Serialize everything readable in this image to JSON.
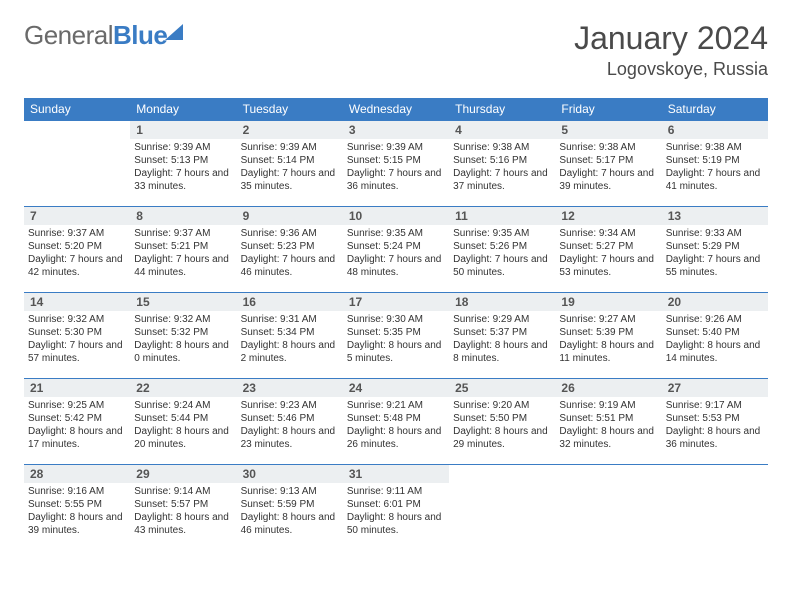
{
  "logo": {
    "part1": "General",
    "part2": "Blue"
  },
  "title": "January 2024",
  "location": "Logovskoye, Russia",
  "colors": {
    "accent": "#3a7cc4",
    "header_bg": "#eceff1",
    "text": "#333333",
    "logo_gray": "#6a6a6a",
    "background": "#ffffff"
  },
  "day_names": [
    "Sunday",
    "Monday",
    "Tuesday",
    "Wednesday",
    "Thursday",
    "Friday",
    "Saturday"
  ],
  "calendar": {
    "type": "table",
    "first_weekday": 1,
    "days_in_month": 31
  },
  "days": {
    "1": {
      "sunrise": "9:39 AM",
      "sunset": "5:13 PM",
      "daylight": "7 hours and 33 minutes."
    },
    "2": {
      "sunrise": "9:39 AM",
      "sunset": "5:14 PM",
      "daylight": "7 hours and 35 minutes."
    },
    "3": {
      "sunrise": "9:39 AM",
      "sunset": "5:15 PM",
      "daylight": "7 hours and 36 minutes."
    },
    "4": {
      "sunrise": "9:38 AM",
      "sunset": "5:16 PM",
      "daylight": "7 hours and 37 minutes."
    },
    "5": {
      "sunrise": "9:38 AM",
      "sunset": "5:17 PM",
      "daylight": "7 hours and 39 minutes."
    },
    "6": {
      "sunrise": "9:38 AM",
      "sunset": "5:19 PM",
      "daylight": "7 hours and 41 minutes."
    },
    "7": {
      "sunrise": "9:37 AM",
      "sunset": "5:20 PM",
      "daylight": "7 hours and 42 minutes."
    },
    "8": {
      "sunrise": "9:37 AM",
      "sunset": "5:21 PM",
      "daylight": "7 hours and 44 minutes."
    },
    "9": {
      "sunrise": "9:36 AM",
      "sunset": "5:23 PM",
      "daylight": "7 hours and 46 minutes."
    },
    "10": {
      "sunrise": "9:35 AM",
      "sunset": "5:24 PM",
      "daylight": "7 hours and 48 minutes."
    },
    "11": {
      "sunrise": "9:35 AM",
      "sunset": "5:26 PM",
      "daylight": "7 hours and 50 minutes."
    },
    "12": {
      "sunrise": "9:34 AM",
      "sunset": "5:27 PM",
      "daylight": "7 hours and 53 minutes."
    },
    "13": {
      "sunrise": "9:33 AM",
      "sunset": "5:29 PM",
      "daylight": "7 hours and 55 minutes."
    },
    "14": {
      "sunrise": "9:32 AM",
      "sunset": "5:30 PM",
      "daylight": "7 hours and 57 minutes."
    },
    "15": {
      "sunrise": "9:32 AM",
      "sunset": "5:32 PM",
      "daylight": "8 hours and 0 minutes."
    },
    "16": {
      "sunrise": "9:31 AM",
      "sunset": "5:34 PM",
      "daylight": "8 hours and 2 minutes."
    },
    "17": {
      "sunrise": "9:30 AM",
      "sunset": "5:35 PM",
      "daylight": "8 hours and 5 minutes."
    },
    "18": {
      "sunrise": "9:29 AM",
      "sunset": "5:37 PM",
      "daylight": "8 hours and 8 minutes."
    },
    "19": {
      "sunrise": "9:27 AM",
      "sunset": "5:39 PM",
      "daylight": "8 hours and 11 minutes."
    },
    "20": {
      "sunrise": "9:26 AM",
      "sunset": "5:40 PM",
      "daylight": "8 hours and 14 minutes."
    },
    "21": {
      "sunrise": "9:25 AM",
      "sunset": "5:42 PM",
      "daylight": "8 hours and 17 minutes."
    },
    "22": {
      "sunrise": "9:24 AM",
      "sunset": "5:44 PM",
      "daylight": "8 hours and 20 minutes."
    },
    "23": {
      "sunrise": "9:23 AM",
      "sunset": "5:46 PM",
      "daylight": "8 hours and 23 minutes."
    },
    "24": {
      "sunrise": "9:21 AM",
      "sunset": "5:48 PM",
      "daylight": "8 hours and 26 minutes."
    },
    "25": {
      "sunrise": "9:20 AM",
      "sunset": "5:50 PM",
      "daylight": "8 hours and 29 minutes."
    },
    "26": {
      "sunrise": "9:19 AM",
      "sunset": "5:51 PM",
      "daylight": "8 hours and 32 minutes."
    },
    "27": {
      "sunrise": "9:17 AM",
      "sunset": "5:53 PM",
      "daylight": "8 hours and 36 minutes."
    },
    "28": {
      "sunrise": "9:16 AM",
      "sunset": "5:55 PM",
      "daylight": "8 hours and 39 minutes."
    },
    "29": {
      "sunrise": "9:14 AM",
      "sunset": "5:57 PM",
      "daylight": "8 hours and 43 minutes."
    },
    "30": {
      "sunrise": "9:13 AM",
      "sunset": "5:59 PM",
      "daylight": "8 hours and 46 minutes."
    },
    "31": {
      "sunrise": "9:11 AM",
      "sunset": "6:01 PM",
      "daylight": "8 hours and 50 minutes."
    }
  },
  "labels": {
    "sunrise": "Sunrise:",
    "sunset": "Sunset:",
    "daylight": "Daylight:"
  }
}
